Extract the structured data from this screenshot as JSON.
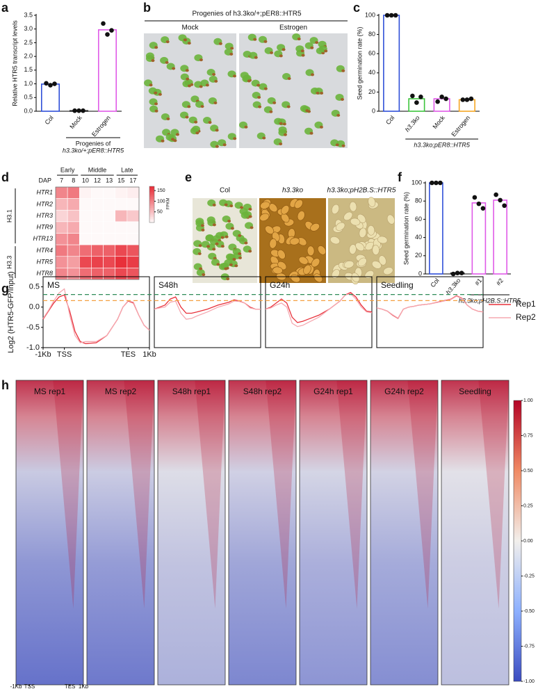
{
  "chart_data": [
    {
      "type": "bar",
      "label": "a",
      "ylabel": "Relative HTR5 transcript levels",
      "categories": [
        "Col",
        "Mock",
        "Estrogen"
      ],
      "values": [
        0.99,
        0.02,
        2.97
      ],
      "points": [
        [
          1.02,
          0.95,
          1.0
        ],
        [
          0.02,
          0.02,
          0.02
        ],
        [
          3.2,
          2.8,
          2.95
        ]
      ],
      "colors": [
        "#2f4fd8",
        "#2a2a2a",
        "#e05ae8"
      ],
      "ylim": [
        0,
        3.5
      ],
      "yticks": [
        {
          "value": 0,
          "label": "0.0"
        },
        0.5,
        {
          "value": 1,
          "label": "1.0"
        },
        1.5,
        {
          "value": 2,
          "label": "2.0"
        },
        2.5,
        {
          "value": 3,
          "label": "3.0"
        },
        3.5
      ],
      "group_label": [
        "Progenies of",
        "h3.3ko/+;pER8::HTR5"
      ]
    },
    {
      "type": "photo",
      "label": "b",
      "title": "Progenies of h3.3ko/+;pER8::HTR5",
      "captions": [
        "Mock",
        "Estrogen"
      ]
    },
    {
      "type": "bar",
      "label": "c",
      "ylabel": "Seed germination rate (%)",
      "categories": [
        "Col",
        "h3.3ko",
        "Mock",
        "Estrogen"
      ],
      "values": [
        100,
        13,
        13,
        12
      ],
      "points": [
        [
          100,
          100,
          100
        ],
        [
          16,
          9,
          15
        ],
        [
          10,
          15,
          13
        ],
        [
          12,
          12,
          13
        ]
      ],
      "colors": [
        "#2f4fd8",
        "#3cc43c",
        "#e05ae8",
        "#f5a623"
      ],
      "ylim": [
        0,
        100
      ],
      "yticks": [
        0,
        20,
        40,
        60,
        80,
        100
      ],
      "group_label": [
        "h3.3ko;pER8::HTR5"
      ]
    },
    {
      "type": "heatmap",
      "label": "d",
      "column_label": "DAP",
      "column_groups": [
        "Early",
        "Middle",
        "Late"
      ],
      "columns": [
        "7",
        "8",
        "10",
        "12",
        "13",
        "15",
        "17"
      ],
      "rows": [
        "HTR1",
        "HTR2",
        "HTR3",
        "HTR9",
        "HTR13",
        "HTR4",
        "HTR5",
        "HTR8"
      ],
      "row_groups": [
        "H3.1",
        "H3.3"
      ],
      "values": [
        [
          100,
          110,
          10,
          5,
          5,
          10,
          15
        ],
        [
          60,
          70,
          5,
          5,
          5,
          5,
          5
        ],
        [
          35,
          50,
          5,
          5,
          5,
          60,
          45
        ],
        [
          60,
          70,
          5,
          5,
          5,
          5,
          5
        ],
        [
          90,
          100,
          5,
          5,
          5,
          5,
          5
        ],
        [
          110,
          100,
          120,
          130,
          130,
          150,
          140
        ],
        [
          90,
          80,
          150,
          155,
          150,
          170,
          160
        ],
        [
          100,
          90,
          120,
          130,
          130,
          150,
          140
        ]
      ],
      "zlim": [
        0,
        170
      ],
      "zticks": [
        50,
        100,
        150
      ],
      "zlabel": "FPKM",
      "color": "#e8303a"
    },
    {
      "type": "photo",
      "label": "e",
      "captions": [
        "Col",
        "h3.3ko",
        "h3.3ko;pH2B.S::HTR5"
      ]
    },
    {
      "type": "bar",
      "label": "f",
      "ylabel": "Seed germination rate (%)",
      "categories": [
        "Col",
        "h3.3ko",
        "#1",
        "#2"
      ],
      "values": [
        100,
        1,
        78,
        81
      ],
      "points": [
        [
          100,
          100,
          100
        ],
        [
          0,
          1,
          1
        ],
        [
          84,
          77,
          72
        ],
        [
          87,
          81,
          75
        ]
      ],
      "colors": [
        "#2f4fd8",
        "#2a2a2a",
        "#e05ae8",
        "#e05ae8"
      ],
      "ylim": [
        0,
        100
      ],
      "yticks": [
        0,
        20,
        40,
        60,
        80,
        100
      ],
      "group_label": [
        "h3.3ko;pH2B.S::HTR5"
      ]
    },
    {
      "type": "line",
      "label": "g",
      "ylabel": "Log2 (HTR5-GFP/Input)",
      "x": [
        0,
        5,
        10,
        15,
        20,
        25,
        30,
        35,
        40,
        50,
        60,
        70,
        75,
        80,
        85,
        90,
        95,
        100
      ],
      "xlim": [
        0,
        100
      ],
      "xticks": [
        {
          "value": 0,
          "label": "-1Kb"
        },
        {
          "value": 20,
          "label": "TSS"
        },
        {
          "value": 80,
          "label": "TES"
        },
        {
          "value": 100,
          "label": "1Kb"
        }
      ],
      "ylim": [
        -1.0,
        0.75
      ],
      "yticks": [
        {
          "value": -1,
          "label": "-1.0"
        },
        -0.5,
        {
          "value": 0,
          "label": "0.0"
        },
        0.5
      ],
      "hlines": [
        {
          "value": 0.31,
          "color": "#2e8b57"
        },
        {
          "value": 0.16,
          "color": "#f5a040"
        }
      ],
      "series": [
        {
          "name": "Rep1",
          "color": "#e8303a"
        },
        {
          "name": "Rep2",
          "color": "#f5a8b0"
        }
      ],
      "panels": [
        {
          "title": "MS",
          "values": [
            [
              -0.3,
              -0.1,
              0.1,
              0.25,
              0.3,
              -0.1,
              -0.6,
              -0.85,
              -0.9,
              -0.88,
              -0.7,
              -0.3,
              0.0,
              0.15,
              0.1,
              -0.2,
              -0.45,
              -0.57
            ],
            [
              -0.28,
              -0.08,
              0.15,
              0.35,
              0.45,
              -0.2,
              -0.7,
              -0.88,
              -0.85,
              -0.85,
              -0.7,
              -0.3,
              0.0,
              0.16,
              0.12,
              -0.2,
              -0.45,
              -0.57
            ]
          ]
        },
        {
          "title": "S48h",
          "values": [
            [
              -0.05,
              0.0,
              0.05,
              0.2,
              0.25,
              0.0,
              -0.15,
              -0.15,
              -0.12,
              -0.05,
              0.05,
              0.12,
              0.18,
              0.15,
              0.1,
              0.0,
              -0.05,
              -0.05
            ],
            [
              -0.05,
              -0.02,
              0.0,
              0.12,
              0.15,
              -0.15,
              -0.3,
              -0.28,
              -0.22,
              -0.12,
              0.0,
              0.08,
              0.15,
              0.14,
              0.1,
              -0.02,
              -0.05,
              -0.05
            ]
          ]
        },
        {
          "title": "G24h",
          "values": [
            [
              -0.05,
              0.0,
              0.1,
              0.2,
              0.1,
              -0.25,
              -0.38,
              -0.35,
              -0.3,
              -0.2,
              -0.05,
              0.15,
              0.3,
              0.36,
              0.25,
              0.05,
              -0.1,
              -0.12
            ],
            [
              -0.05,
              -0.02,
              0.05,
              0.1,
              0.0,
              -0.4,
              -0.48,
              -0.45,
              -0.38,
              -0.25,
              -0.05,
              0.15,
              0.3,
              0.33,
              0.2,
              0.0,
              -0.12,
              -0.14
            ]
          ]
        },
        {
          "title": "Seedling",
          "values": [
            [
              -0.02,
              -0.05,
              -0.1,
              -0.2,
              -0.28,
              -0.05,
              0.0,
              0.02,
              0.05,
              0.08,
              0.14,
              0.2,
              0.28,
              0.22,
              0.05,
              -0.05,
              -0.1,
              -0.12
            ],
            [
              -0.02,
              -0.05,
              -0.1,
              -0.19,
              -0.27,
              -0.05,
              0.0,
              0.02,
              0.05,
              0.08,
              0.13,
              0.19,
              0.27,
              0.21,
              0.05,
              -0.05,
              -0.1,
              -0.12
            ]
          ]
        }
      ]
    },
    {
      "type": "density",
      "label": "h",
      "titles": [
        "MS rep1",
        "MS rep2",
        "S48h rep1",
        "S48h rep2",
        "G24h rep1",
        "G24h rep2",
        "Seedling"
      ],
      "xlim": [
        0,
        100
      ],
      "xticks": [
        {
          "value": 0,
          "label": "-1Kb"
        },
        {
          "value": 20,
          "label": "TSS"
        },
        {
          "value": 80,
          "label": "TES"
        },
        {
          "value": 100,
          "label": "1Kb"
        }
      ],
      "zlim": [
        -1,
        1
      ],
      "zticks": [
        {
          "value": 1,
          "label": "1.00"
        },
        0.75,
        {
          "value": 0.5,
          "label": "0.50"
        },
        0.25,
        {
          "value": 0,
          "label": "0.00"
        },
        -0.25,
        {
          "value": -0.5,
          "label": "-0.50"
        },
        -0.75,
        {
          "value": -1,
          "label": "-1.00"
        }
      ],
      "colorscale": [
        "#3b4cc0",
        "#f2efec",
        "#b40426"
      ]
    }
  ]
}
